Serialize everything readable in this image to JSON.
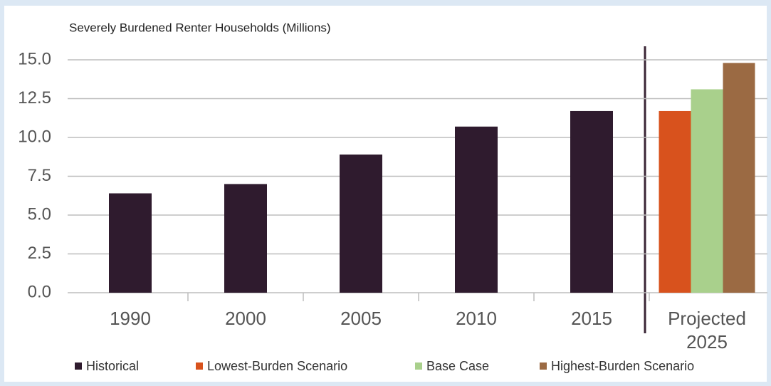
{
  "chart_data": {
    "type": "bar",
    "title": "Severely Burdened Renter Households (Millions)",
    "categories": [
      "1990",
      "2000",
      "2005",
      "2010",
      "2015",
      "Projected 2025"
    ],
    "series": [
      {
        "name": "Historical",
        "color": "#2f1b2e",
        "values": [
          6.4,
          7.0,
          8.9,
          10.7,
          11.7,
          null
        ]
      },
      {
        "name": "Lowest-Burden Scenario",
        "color": "#d8521d",
        "values": [
          null,
          null,
          null,
          null,
          null,
          11.7
        ]
      },
      {
        "name": "Base Case",
        "color": "#a9d08c",
        "values": [
          null,
          null,
          null,
          null,
          null,
          13.1
        ]
      },
      {
        "name": "Highest-Burden Scenario",
        "color": "#9b6a43",
        "values": [
          null,
          null,
          null,
          null,
          null,
          14.8
        ]
      }
    ],
    "ylim": [
      0,
      15
    ],
    "yticks": [
      {
        "value": 0,
        "label": "0.0"
      },
      2.5,
      {
        "value": 5,
        "label": "5.0"
      },
      7.5,
      {
        "value": 10,
        "label": "10.0"
      },
      12.5,
      {
        "value": 15,
        "label": "15.0"
      }
    ],
    "grid": true,
    "legend": "bottom"
  }
}
